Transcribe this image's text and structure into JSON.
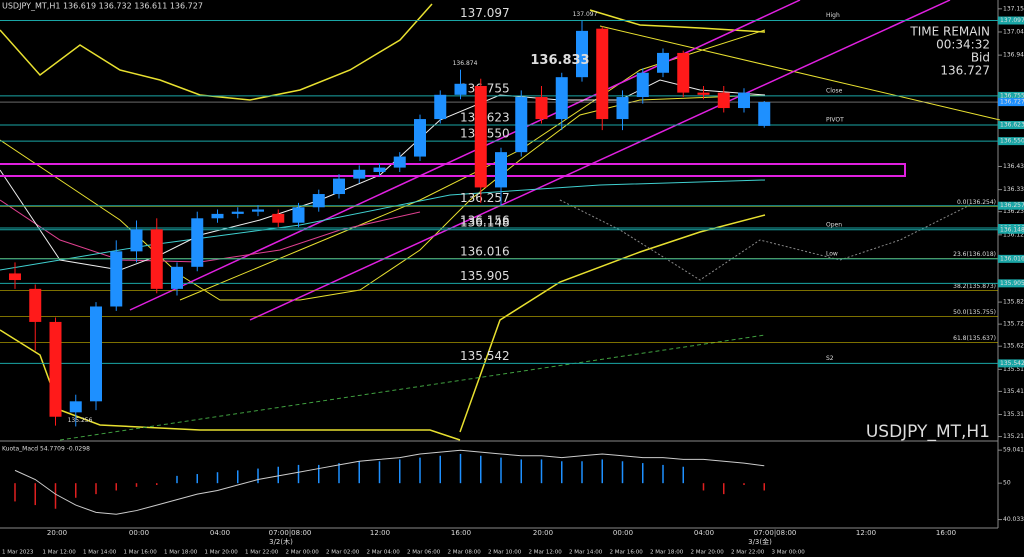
{
  "header": {
    "symbol_info": "USDJPY_MT,H1  136.619 136.732 136.611 136.727"
  },
  "info": {
    "time_remain": "TIME REMAIN",
    "countdown": "00:34:32",
    "bid_label": "Bid",
    "bid": 136.727
  },
  "watermark": "USDJPY_MT,H1",
  "chart_data": [
    {
      "type": "candlestick",
      "up_color": "#1e90ff",
      "down_color": "#ff1a1a",
      "level_color": "#1aa6a6",
      "ylim": [
        135.19,
        137.19
      ],
      "yticks": [
        {
          "value": 137.15,
          "label": "137.150"
        },
        137.045,
        {
          "value": 136.94,
          "label": "136.940"
        },
        136.435,
        {
          "value": 136.33,
          "label": "136.330"
        },
        {
          "value": 136.23,
          "label": "136.230"
        },
        136.125,
        {
          "value": 135.82,
          "label": "135.820"
        },
        {
          "value": 135.72,
          "label": "135.720"
        },
        {
          "value": 135.62,
          "label": "135.620"
        },
        135.515,
        135.415,
        {
          "value": 135.31,
          "label": "135.310"
        },
        {
          "value": 135.21,
          "label": "135.210"
        }
      ],
      "open": [
        135.95,
        135.88,
        135.73,
        135.32,
        135.37,
        135.8,
        136.05,
        136.15,
        135.88,
        135.98,
        136.2,
        136.22,
        136.23,
        136.22,
        136.18,
        136.25,
        136.31,
        136.38,
        136.41,
        136.43,
        136.48,
        136.65,
        136.76,
        136.8,
        136.34,
        136.5,
        136.75,
        136.65,
        136.84,
        137.06,
        136.65,
        136.75,
        136.86,
        136.95,
        136.77,
        136.77,
        136.7,
        136.619
      ],
      "high": [
        136.0,
        135.9,
        135.75,
        135.4,
        135.82,
        136.1,
        136.19,
        136.2,
        136.0,
        136.23,
        136.24,
        136.25,
        136.26,
        136.24,
        136.27,
        136.33,
        136.4,
        136.44,
        136.45,
        136.5,
        136.67,
        136.78,
        136.874,
        136.833,
        136.52,
        136.78,
        136.8,
        136.86,
        137.097,
        137.07,
        136.78,
        136.88,
        136.97,
        136.96,
        136.8,
        136.8,
        136.79,
        136.732
      ],
      "low": [
        135.88,
        135.6,
        135.26,
        135.256,
        135.33,
        135.78,
        136.0,
        135.86,
        135.85,
        135.96,
        136.18,
        136.2,
        136.21,
        136.16,
        136.16,
        136.23,
        136.29,
        136.36,
        136.39,
        136.41,
        136.46,
        136.63,
        136.74,
        136.27,
        136.257,
        136.48,
        136.63,
        136.6,
        136.82,
        136.6,
        136.6,
        136.72,
        136.84,
        136.75,
        136.74,
        136.68,
        136.68,
        136.611
      ],
      "close": [
        135.92,
        135.73,
        135.3,
        135.37,
        135.8,
        136.05,
        136.15,
        135.88,
        135.98,
        136.2,
        136.22,
        136.23,
        136.24,
        136.18,
        136.25,
        136.31,
        136.38,
        136.42,
        136.43,
        136.48,
        136.65,
        136.76,
        136.81,
        136.34,
        136.5,
        136.75,
        136.65,
        136.84,
        137.05,
        136.65,
        136.75,
        136.86,
        136.95,
        136.77,
        136.76,
        136.7,
        136.77,
        136.727
      ],
      "levels": [
        137.097,
        136.755,
        136.623,
        {
          "value": 136.55,
          "label": "136.550"
        },
        136.257,
        136.156,
        136.148,
        136.016,
        135.905,
        135.542
      ],
      "pivots": [
        {
          "name": "High",
          "value": 137.097
        },
        {
          "name": "Close",
          "value": 136.755
        },
        {
          "name": "PIVOT",
          "value": 136.623
        },
        {
          "name": "Open",
          "value": 136.148
        },
        {
          "name": "Low",
          "value": 136.016
        },
        {
          "name": "S2",
          "value": 135.542
        }
      ],
      "fibs": [
        {
          "value": 136.254,
          "label": "0.0(136.254)"
        },
        {
          "value": 136.018,
          "label": "23.6(136.018)"
        },
        {
          "value": 135.873,
          "label": "38.2(135.873)"
        },
        {
          "value": 135.755,
          "label": "50.0(135.755)"
        },
        {
          "value": 135.637,
          "label": "61.8(135.637)"
        }
      ],
      "annotations": [
        137.097,
        136.874,
        136.833,
        135.256
      ]
    },
    {
      "type": "macd",
      "title": "Kuota_Macd 54.7709 -0.0298",
      "ylim": [
        38,
        61
      ],
      "yticks": [
        59.0411,
        50,
        40.0331
      ],
      "values": [
        53.5,
        51,
        47,
        44,
        42,
        41.5,
        42.5,
        44,
        45.5,
        47,
        48,
        49.5,
        51,
        52,
        53,
        54,
        55,
        56,
        56.5,
        57,
        58,
        58.5,
        59,
        58.5,
        58,
        57.5,
        57.5,
        57,
        57.5,
        58,
        57.5,
        57,
        57,
        56.5,
        56.5,
        56,
        55.5,
        54.7709
      ],
      "histogram": [
        45,
        44,
        43,
        46,
        47,
        48,
        49,
        49.5,
        52,
        52.5,
        53,
        53.5,
        54,
        54.5,
        55,
        55,
        55.5,
        56,
        56,
        56.5,
        57,
        57.5,
        58,
        57.5,
        57,
        56.5,
        56.5,
        56,
        56,
        56.5,
        56,
        55.5,
        55,
        54.5,
        48,
        47,
        49.5,
        48
      ]
    }
  ],
  "time_axis": {
    "hours": [
      "20:00",
      "00:00",
      "04:00",
      "07:00|08:00",
      "12:00",
      "16:00",
      "20:00",
      "00:00",
      "04:00",
      "07:00|08:00",
      "12:00",
      "16:00"
    ],
    "days": [
      "3/2(木)",
      "3/3(金)"
    ],
    "dates": [
      "1 Mar 2023",
      "1 Mar 12:00",
      "1 Mar 14:00",
      "1 Mar 16:00",
      "1 Mar 18:00",
      "1 Mar 20:00",
      "1 Mar 22:00",
      "2 Mar 00:00",
      "2 Mar 02:00",
      "2 Mar 04:00",
      "2 Mar 06:00",
      "2 Mar 08:00",
      "2 Mar 10:00",
      "2 Mar 12:00",
      "2 Mar 14:00",
      "2 Mar 16:00",
      "2 Mar 18:00",
      "2 Mar 20:00",
      "2 Mar 22:00",
      "3 Mar 00:00"
    ]
  }
}
